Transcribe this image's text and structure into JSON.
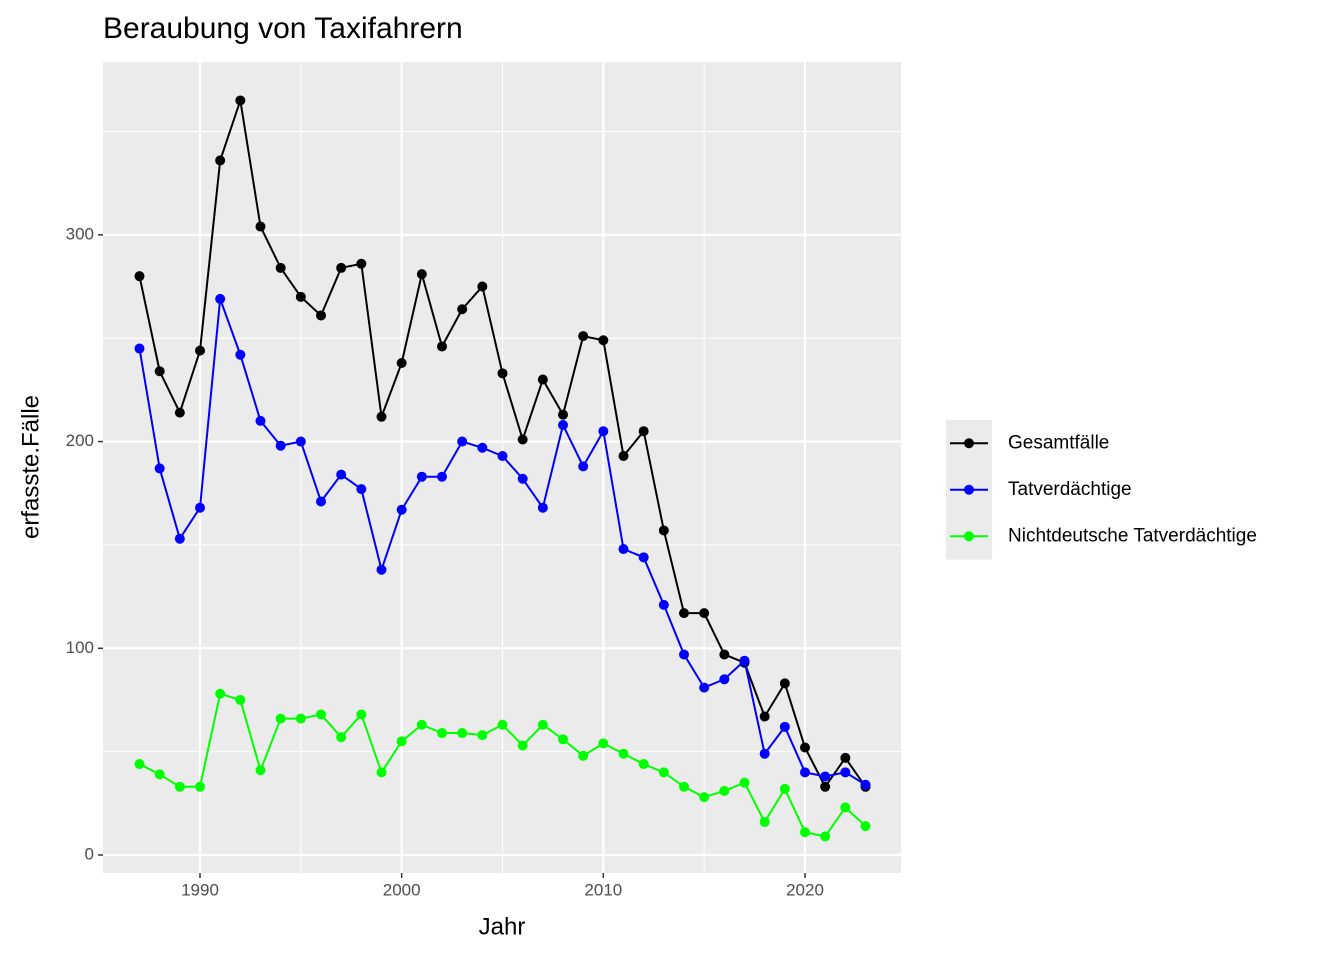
{
  "chart_data": {
    "type": "line",
    "title": "Beraubung von Taxifahrern",
    "x_label": "Jahr",
    "y_label": "erfasste.Fälle",
    "x": [
      1987,
      1988,
      1989,
      1990,
      1991,
      1992,
      1993,
      1994,
      1995,
      1996,
      1997,
      1998,
      1999,
      2000,
      2001,
      2002,
      2003,
      2004,
      2005,
      2006,
      2007,
      2008,
      2009,
      2010,
      2011,
      2012,
      2013,
      2014,
      2015,
      2016,
      2017,
      2018,
      2019,
      2020,
      2021,
      2022,
      2023
    ],
    "series": [
      {
        "name": "Gesamtfälle",
        "color": "#000000",
        "values": [
          280,
          234,
          214,
          244,
          336,
          365,
          304,
          284,
          270,
          261,
          284,
          286,
          212,
          238,
          281,
          246,
          264,
          275,
          233,
          201,
          230,
          213,
          251,
          249,
          193,
          205,
          157,
          117,
          117,
          97,
          93,
          67,
          83,
          52,
          33,
          47,
          33
        ]
      },
      {
        "name": "Tatverdächtige",
        "color": "#0000ff",
        "values": [
          245,
          187,
          153,
          168,
          269,
          242,
          210,
          198,
          200,
          171,
          184,
          177,
          138,
          167,
          183,
          183,
          200,
          197,
          193,
          182,
          168,
          208,
          188,
          205,
          148,
          144,
          121,
          97,
          81,
          85,
          94,
          49,
          62,
          40,
          38,
          40,
          34
        ]
      },
      {
        "name": "Nichtdeutsche Tatverdächtige",
        "color": "#00ff00",
        "values": [
          44,
          39,
          33,
          33,
          78,
          75,
          41,
          66,
          66,
          68,
          57,
          68,
          40,
          55,
          63,
          59,
          59,
          58,
          63,
          53,
          63,
          56,
          48,
          54,
          49,
          44,
          40,
          33,
          28,
          31,
          35,
          16,
          32,
          11,
          9,
          23,
          14
        ]
      }
    ],
    "xlim": [
      1985.19,
      2024.76
    ],
    "xticks": [
      1990,
      2000,
      2010,
      2020
    ],
    "xminor": [
      1985,
      1995,
      2005,
      2015
    ],
    "ylim": [
      -8.7,
      383.6
    ],
    "yticks": [
      0,
      100,
      200,
      300
    ],
    "yminor": [
      50,
      150,
      250,
      350
    ],
    "grid": true,
    "legend": "right"
  }
}
